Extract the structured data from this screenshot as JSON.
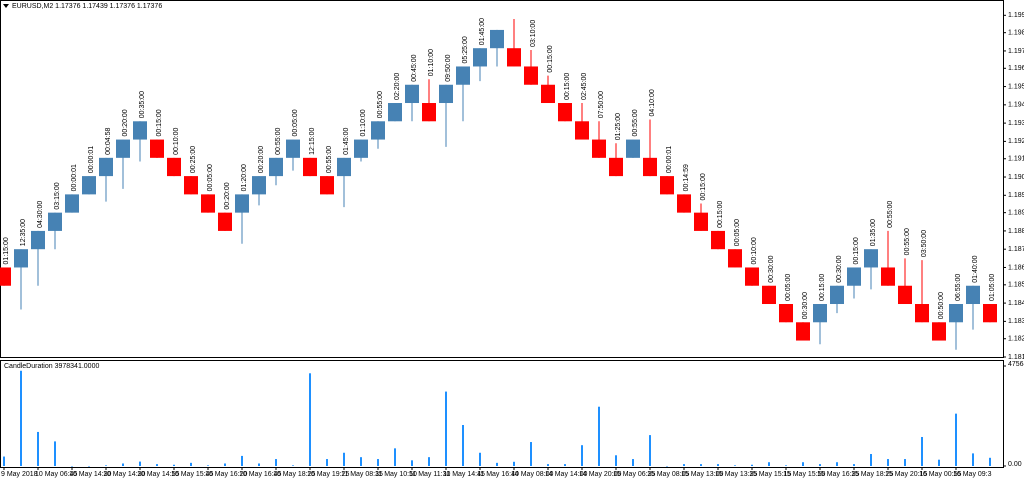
{
  "chart_data": [
    {
      "type": "candlestick",
      "title": "EURUSD,M2  1.17376 1.17439 1.17376 1.17376",
      "up_color": "#4682b4",
      "down_color": "#ff0000",
      "label_color": "#2b2bd9",
      "labels": [
        "01:15:00",
        "12:35:00",
        "04:30:00",
        "03:15:00",
        "00:00:01",
        "00:00:01",
        "00:04:58",
        "00:20:00",
        "00:35:00",
        "00:15:00",
        "00:10:00",
        "00:25:00",
        "00:05:00",
        "00:20:00",
        "01:20:00",
        "00:20:00",
        "00:55:00",
        "00:05:00",
        "12:15:00",
        "00:55:00",
        "01:45:00",
        "01:10:00",
        "00:55:00",
        "02:20:00",
        "00:45:00",
        "01:10:00",
        "09:50:00",
        "05:25:00",
        "01:45:00",
        null,
        null,
        "03:10:00",
        "00:15:00",
        "00:15:00",
        "02:45:00",
        "07:50:00",
        "01:25:00",
        "00:55:00",
        "04:10:00",
        "00:00:01",
        "00:14:59",
        "00:15:00",
        "00:15:00",
        "00:05:00",
        "00:10:00",
        "00:30:00",
        "00:05:00",
        "00:30:00",
        "00:15:00",
        "00:30:00",
        "00:15:00",
        "01:35:00",
        "00:55:00",
        "00:55:00",
        "03:50:00",
        "00:50:00",
        "06:55:00",
        "01:40:00",
        "01:05:00"
      ],
      "open": [
        1.186,
        1.186,
        1.187,
        1.188,
        1.189,
        1.19,
        1.191,
        1.192,
        1.193,
        1.193,
        1.192,
        1.191,
        1.19,
        1.189,
        1.189,
        1.19,
        1.191,
        1.192,
        1.192,
        1.191,
        1.191,
        1.192,
        1.193,
        1.194,
        1.195,
        1.195,
        1.195,
        1.196,
        1.197,
        1.198,
        1.198,
        1.197,
        1.196,
        1.195,
        1.194,
        1.193,
        1.192,
        1.192,
        1.192,
        1.191,
        1.19,
        1.189,
        1.188,
        1.187,
        1.186,
        1.185,
        1.184,
        1.183,
        1.183,
        1.184,
        1.185,
        1.186,
        1.186,
        1.185,
        1.184,
        1.183,
        1.183,
        1.184,
        1.184
      ],
      "close": [
        1.185,
        1.187,
        1.188,
        1.189,
        1.19,
        1.191,
        1.192,
        1.193,
        1.194,
        1.192,
        1.191,
        1.19,
        1.189,
        1.188,
        1.19,
        1.191,
        1.192,
        1.193,
        1.191,
        1.19,
        1.192,
        1.193,
        1.194,
        1.195,
        1.196,
        1.194,
        1.196,
        1.197,
        1.198,
        1.199,
        1.197,
        1.196,
        1.195,
        1.194,
        1.193,
        1.192,
        1.191,
        1.193,
        1.191,
        1.19,
        1.189,
        1.188,
        1.187,
        1.186,
        1.185,
        1.184,
        1.183,
        1.182,
        1.184,
        1.185,
        1.186,
        1.187,
        1.185,
        1.184,
        1.183,
        1.182,
        1.184,
        1.185,
        1.183
      ],
      "high": [
        1.186,
        1.187,
        1.188,
        1.189,
        1.19,
        1.191,
        1.192,
        1.193,
        1.194,
        1.193,
        1.192,
        1.191,
        1.19,
        1.189,
        1.19,
        1.191,
        1.192,
        1.193,
        1.192,
        1.191,
        1.192,
        1.193,
        1.194,
        1.195,
        1.196,
        1.1963,
        1.196,
        1.197,
        1.198,
        1.199,
        1.1996,
        1.1979,
        1.1965,
        1.195,
        1.195,
        1.194,
        1.1928,
        1.193,
        1.1941,
        1.191,
        1.19,
        1.1895,
        1.188,
        1.187,
        1.186,
        1.185,
        1.184,
        1.183,
        1.184,
        1.185,
        1.186,
        1.187,
        1.188,
        1.1865,
        1.1864,
        1.183,
        1.184,
        1.185,
        1.184
      ],
      "low": [
        1.185,
        1.1837,
        1.185,
        1.187,
        1.189,
        1.19,
        1.1896,
        1.1903,
        1.1918,
        1.192,
        1.191,
        1.19,
        1.189,
        1.188,
        1.1873,
        1.1894,
        1.1905,
        1.1913,
        1.191,
        1.19,
        1.1893,
        1.1918,
        1.1925,
        1.194,
        1.194,
        1.194,
        1.1926,
        1.194,
        1.1962,
        1.197,
        1.197,
        1.196,
        1.195,
        1.194,
        1.193,
        1.192,
        1.191,
        1.192,
        1.191,
        1.19,
        1.189,
        1.188,
        1.187,
        1.186,
        1.185,
        1.184,
        1.183,
        1.182,
        1.1818,
        1.1835,
        1.1843,
        1.1848,
        1.185,
        1.184,
        1.183,
        1.182,
        1.1815,
        1.1826,
        1.183
      ],
      "ylim": [
        1.1811,
        1.2002
      ],
      "yticks": [
        {
          "value": 1.1998,
          "label": "1.19980"
        },
        {
          "value": 1.19885,
          "label": "1.19885"
        },
        {
          "value": 1.19785,
          "label": "1.19785"
        },
        {
          "value": 1.1969,
          "label": "1.19690"
        },
        {
          "value": 1.1959,
          "label": "1.19590"
        },
        {
          "value": 1.1949,
          "label": "1.19490"
        },
        {
          "value": 1.1939,
          "label": "1.19390"
        },
        {
          "value": 1.1929,
          "label": "1.19290"
        },
        {
          "value": 1.19195,
          "label": "1.19195"
        },
        {
          "value": 1.19095,
          "label": "1.19095"
        },
        {
          "value": 1.18995,
          "label": "1.18995"
        },
        {
          "value": 1.189,
          "label": "1.18900"
        },
        {
          "value": 1.188,
          "label": "1.18800"
        },
        {
          "value": 1.187,
          "label": "1.18700"
        },
        {
          "value": 1.186,
          "label": "1.18600"
        },
        {
          "value": 1.18505,
          "label": "1.18505"
        },
        {
          "value": 1.18405,
          "label": "1.18405"
        },
        {
          "value": 1.18305,
          "label": "1.18305"
        },
        {
          "value": 1.1821,
          "label": "1.18210"
        },
        {
          "value": 1.1811,
          "label": "1.18110"
        }
      ]
    },
    {
      "type": "bar",
      "title": "CandleDuration 3978341.0000",
      "color": "#1e90ff",
      "categories": [
        "9 May 2018",
        null,
        "10 May 06:45",
        null,
        "10 May 14:30",
        null,
        "10 May 14:30",
        null,
        "10 May 14:55",
        null,
        "10 May 15:45",
        null,
        "10 May 16:20",
        null,
        "10 May 16:45",
        null,
        "10 May 18:25",
        null,
        "10 May 19:25",
        null,
        "11 May 08:35",
        null,
        "11 May 10:50",
        null,
        "11 May 11:30",
        null,
        "11 May 14:45",
        null,
        "11 May 16:40",
        null,
        "14 May 08:00",
        null,
        "14 May 14:00",
        null,
        "14 May 20:00",
        null,
        "15 May 06:35",
        null,
        "15 May 08:05",
        null,
        "15 May 13:00",
        null,
        "15 May 13:35",
        null,
        "15 May 15:15",
        null,
        "15 May 15:50",
        null,
        "15 May 16:35",
        null,
        "15 May 18:25",
        null,
        "15 May 20:15",
        null,
        "16 May 00:55",
        null,
        "16 May 09:3",
        null,
        null
      ],
      "values": [
        4500,
        45300,
        16200,
        11700,
        1,
        1,
        298,
        1200,
        2100,
        900,
        600,
        1500,
        300,
        1200,
        4800,
        1200,
        3300,
        300,
        44100,
        3300,
        6300,
        4200,
        3300,
        8400,
        2700,
        4200,
        35400,
        19500,
        6300,
        1500,
        2000,
        11400,
        900,
        900,
        9900,
        28200,
        5100,
        3300,
        14700,
        1,
        899,
        900,
        900,
        300,
        600,
        1800,
        300,
        1800,
        900,
        1800,
        900,
        5700,
        3300,
        3300,
        13800,
        3000,
        24900,
        6000,
        3900
      ],
      "ylim": [
        0,
        47564.95
      ],
      "yticks": [
        47564.95,
        {
          "value": 0,
          "label": "0.00"
        }
      ]
    }
  ]
}
